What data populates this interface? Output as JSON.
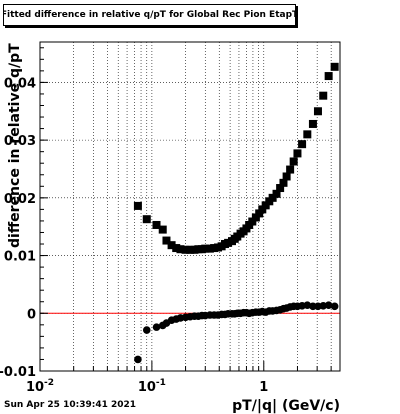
{
  "chart_data": {
    "type": "scatter",
    "title": "Fitted difference in relative q/pT for Global Rec Pion EtapT",
    "xlabel": "pT/|q| (GeV/c)",
    "ylabel": "difference in relative q/pT",
    "xscale": "log",
    "xlim": [
      0.01,
      4.8
    ],
    "ylim": [
      -0.01,
      0.047
    ],
    "x_tick_labels": [
      {
        "value": 0.01,
        "base": "10",
        "exp": "-2"
      },
      {
        "value": 0.1,
        "base": "10",
        "exp": "-1"
      },
      {
        "value": 1,
        "base": "1",
        "exp": ""
      }
    ],
    "y_ticks": [
      -0.01,
      0,
      0.01,
      0.02,
      0.03,
      0.04
    ],
    "y_tick_labels": [
      "-0.01",
      "0",
      "0.01",
      "0.02",
      "0.03",
      "0.04"
    ],
    "grid": true,
    "reference_line": {
      "y": 0,
      "color": "#ff0000"
    },
    "series": [
      {
        "marker": "square",
        "color": "#000000",
        "points": [
          [
            0.075,
            0.0186
          ],
          [
            0.09,
            0.0163
          ],
          [
            0.11,
            0.0153
          ],
          [
            0.125,
            0.0145
          ],
          [
            0.135,
            0.0126
          ],
          [
            0.15,
            0.0118
          ],
          [
            0.165,
            0.0113
          ],
          [
            0.18,
            0.0111
          ],
          [
            0.2,
            0.011
          ],
          [
            0.22,
            0.011
          ],
          [
            0.24,
            0.011
          ],
          [
            0.26,
            0.0111
          ],
          [
            0.28,
            0.0111
          ],
          [
            0.3,
            0.0112
          ],
          [
            0.33,
            0.0112
          ],
          [
            0.36,
            0.0113
          ],
          [
            0.39,
            0.0114
          ],
          [
            0.42,
            0.0116
          ],
          [
            0.45,
            0.012
          ],
          [
            0.48,
            0.0122
          ],
          [
            0.52,
            0.0125
          ],
          [
            0.55,
            0.0129
          ],
          [
            0.58,
            0.0133
          ],
          [
            0.62,
            0.0138
          ],
          [
            0.66,
            0.0142
          ],
          [
            0.7,
            0.0147
          ],
          [
            0.74,
            0.0153
          ],
          [
            0.79,
            0.0159
          ],
          [
            0.85,
            0.0166
          ],
          [
            0.91,
            0.0173
          ],
          [
            0.97,
            0.018
          ],
          [
            1.04,
            0.0187
          ],
          [
            1.12,
            0.0194
          ],
          [
            1.2,
            0.02
          ],
          [
            1.3,
            0.0207
          ],
          [
            1.4,
            0.0217
          ],
          [
            1.5,
            0.0226
          ],
          [
            1.6,
            0.0237
          ],
          [
            1.72,
            0.0249
          ],
          [
            1.85,
            0.0263
          ],
          [
            2.0,
            0.0277
          ],
          [
            2.2,
            0.0293
          ],
          [
            2.45,
            0.031
          ],
          [
            2.75,
            0.0328
          ],
          [
            3.05,
            0.035
          ],
          [
            3.4,
            0.0377
          ],
          [
            3.8,
            0.0411
          ],
          [
            4.3,
            0.0427
          ]
        ]
      },
      {
        "marker": "circle",
        "color": "#000000",
        "points": [
          [
            0.075,
            -0.008
          ],
          [
            0.09,
            -0.0029
          ],
          [
            0.11,
            -0.0024
          ],
          [
            0.125,
            -0.0021
          ],
          [
            0.135,
            -0.0017
          ],
          [
            0.15,
            -0.0012
          ],
          [
            0.165,
            -0.001
          ],
          [
            0.18,
            -0.0008
          ],
          [
            0.2,
            -0.0007
          ],
          [
            0.22,
            -0.0006
          ],
          [
            0.24,
            -0.0005
          ],
          [
            0.26,
            -0.0005
          ],
          [
            0.28,
            -0.0004
          ],
          [
            0.3,
            -0.0004
          ],
          [
            0.33,
            -0.0003
          ],
          [
            0.36,
            -0.0003
          ],
          [
            0.39,
            -0.0003
          ],
          [
            0.42,
            -0.0002
          ],
          [
            0.45,
            -0.0002
          ],
          [
            0.48,
            -0.0001
          ],
          [
            0.52,
            -0.0001
          ],
          [
            0.55,
            -0.0001
          ],
          [
            0.58,
            0.0
          ],
          [
            0.62,
            0.0
          ],
          [
            0.66,
            0.0001
          ],
          [
            0.7,
            0.0001
          ],
          [
            0.74,
            0.0
          ],
          [
            0.79,
            0.0001
          ],
          [
            0.85,
            0.0002
          ],
          [
            0.91,
            0.0002
          ],
          [
            0.97,
            0.0003
          ],
          [
            1.04,
            0.0002
          ],
          [
            1.12,
            0.0004
          ],
          [
            1.2,
            0.0004
          ],
          [
            1.3,
            0.0005
          ],
          [
            1.4,
            0.0006
          ],
          [
            1.5,
            0.0008
          ],
          [
            1.6,
            0.0009
          ],
          [
            1.72,
            0.0011
          ],
          [
            1.85,
            0.0012
          ],
          [
            2.0,
            0.0012
          ],
          [
            2.2,
            0.0013
          ],
          [
            2.45,
            0.0014
          ],
          [
            2.75,
            0.0012
          ],
          [
            3.05,
            0.0012
          ],
          [
            3.4,
            0.0013
          ],
          [
            3.8,
            0.0014
          ],
          [
            4.3,
            0.0012
          ]
        ]
      }
    ]
  },
  "timestamp": "Sun Apr 25 10:39:41 2021"
}
